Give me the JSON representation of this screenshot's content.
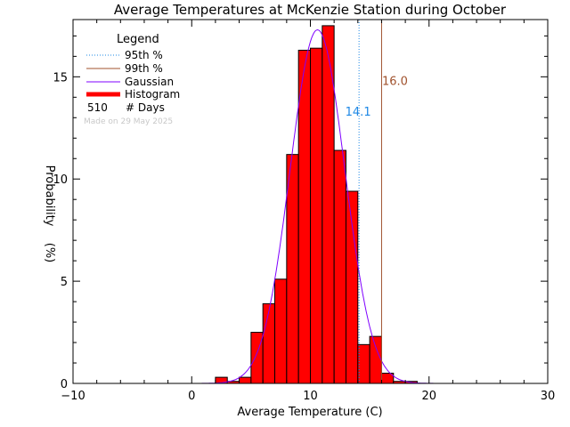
{
  "chart_data": {
    "type": "bar",
    "title": "Average Temperatures at McKenzie Station during October",
    "xlabel": "Average Temperature (C)",
    "ylabel": "Probability",
    "ylabel_unit": "(%)",
    "xlim": [
      -10,
      30
    ],
    "ylim": [
      0,
      17.8
    ],
    "xticks": [
      -10,
      0,
      10,
      20,
      30
    ],
    "yticks": [
      0,
      5,
      10,
      15
    ],
    "bin_width": 1,
    "histogram": {
      "name": "Histogram",
      "color": "#ff0000",
      "bin_starts": [
        2,
        3,
        4,
        5,
        6,
        7,
        8,
        9,
        10,
        11,
        12,
        13,
        14,
        15,
        16,
        17,
        18
      ],
      "values": [
        0.3,
        0.1,
        0.3,
        2.5,
        3.9,
        5.1,
        11.2,
        16.3,
        16.4,
        17.5,
        11.4,
        9.4,
        1.9,
        2.3,
        0.5,
        0.1,
        0.1
      ]
    },
    "gaussian": {
      "name": "Gaussian",
      "color": "#7f00ff",
      "mean": 10.6,
      "sigma": 2.3,
      "peak": 17.3
    },
    "percentile_95": {
      "name": "95th %",
      "value": 14.1,
      "label": "14.1",
      "color": "#1e88e5"
    },
    "percentile_99": {
      "name": "99th %",
      "value": 16.0,
      "label": "16.0",
      "color": "#a0522d"
    },
    "legend": {
      "title": "Legend",
      "placement": "top-left",
      "entries": [
        "95th %",
        "99th %",
        "Gaussian",
        "Histogram"
      ],
      "days_count": "510",
      "days_label": "# Days"
    },
    "credit": "Made on 29 May 2025"
  }
}
